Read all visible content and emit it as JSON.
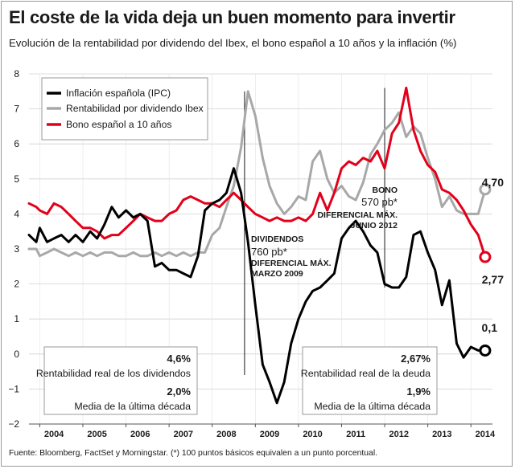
{
  "header": {
    "title": "El coste de la vida deja un buen momento para invertir",
    "subtitle": "Evolución de la rentabilidad por dividendo del Ibex, el bono español a 10 años y la inflación (%)"
  },
  "footer": {
    "source": "Fuente: Bloomberg, FactSet y Morningstar. (*) 100 puntos básicos equivalen a un punto porcentual."
  },
  "chart_data": {
    "type": "line",
    "title": "El coste de la vida deja un buen momento para invertir",
    "subtitle": "Evolución de la rentabilidad por dividendo del Ibex, el bono español a 10 años y la inflación (%)",
    "xlabel": "",
    "ylabel": "",
    "xlim": [
      2003.75,
      2014.5
    ],
    "ylim": [
      -2,
      8
    ],
    "y_ticks": [
      -2,
      -1,
      0,
      1,
      2,
      3,
      4,
      5,
      6,
      7,
      8
    ],
    "x_tick_labels": [
      "2004",
      "2005",
      "2006",
      "2007",
      "2008",
      "2009",
      "2010",
      "2011",
      "2012",
      "2013",
      "2014"
    ],
    "grid": true,
    "legend_position": "top-left",
    "series": [
      {
        "name": "Inflación española (IPC)",
        "color": "#000000",
        "x": [
          2003.75,
          2003.92,
          2004.0,
          2004.17,
          2004.33,
          2004.5,
          2004.67,
          2004.83,
          2005.0,
          2005.17,
          2005.33,
          2005.5,
          2005.67,
          2005.83,
          2006.0,
          2006.17,
          2006.33,
          2006.5,
          2006.67,
          2006.83,
          2007.0,
          2007.17,
          2007.33,
          2007.5,
          2007.67,
          2007.83,
          2008.0,
          2008.17,
          2008.33,
          2008.5,
          2008.67,
          2008.83,
          2009.0,
          2009.17,
          2009.33,
          2009.5,
          2009.67,
          2009.83,
          2010.0,
          2010.17,
          2010.33,
          2010.5,
          2010.67,
          2010.83,
          2011.0,
          2011.17,
          2011.33,
          2011.5,
          2011.67,
          2011.83,
          2012.0,
          2012.17,
          2012.33,
          2012.5,
          2012.67,
          2012.83,
          2013.0,
          2013.17,
          2013.33,
          2013.5,
          2013.67,
          2013.83,
          2014.0,
          2014.17,
          2014.33
        ],
        "values": [
          3.4,
          3.2,
          3.6,
          3.2,
          3.3,
          3.4,
          3.2,
          3.4,
          3.2,
          3.5,
          3.3,
          3.7,
          4.2,
          3.9,
          4.1,
          3.9,
          4.0,
          3.8,
          2.5,
          2.6,
          2.4,
          2.4,
          2.3,
          2.2,
          2.8,
          4.1,
          4.3,
          4.4,
          4.6,
          5.3,
          4.6,
          3.2,
          1.4,
          -0.3,
          -0.8,
          -1.4,
          -0.8,
          0.3,
          1.0,
          1.5,
          1.8,
          1.9,
          2.1,
          2.3,
          3.3,
          3.6,
          3.8,
          3.5,
          3.1,
          2.9,
          2.0,
          1.9,
          1.9,
          2.2,
          3.4,
          3.5,
          2.9,
          2.4,
          1.4,
          2.1,
          0.3,
          -0.1,
          0.2,
          0.1,
          0.1
        ]
      },
      {
        "name": "Rentabilidad por dividendo Ibex",
        "color": "#a8a8a8",
        "x": [
          2003.75,
          2003.92,
          2004.0,
          2004.17,
          2004.33,
          2004.5,
          2004.67,
          2004.83,
          2005.0,
          2005.17,
          2005.33,
          2005.5,
          2005.67,
          2005.83,
          2006.0,
          2006.17,
          2006.33,
          2006.5,
          2006.67,
          2006.83,
          2007.0,
          2007.17,
          2007.33,
          2007.5,
          2007.67,
          2007.83,
          2008.0,
          2008.17,
          2008.33,
          2008.5,
          2008.67,
          2008.83,
          2009.0,
          2009.17,
          2009.33,
          2009.5,
          2009.67,
          2009.83,
          2010.0,
          2010.17,
          2010.33,
          2010.5,
          2010.67,
          2010.83,
          2011.0,
          2011.17,
          2011.33,
          2011.5,
          2011.67,
          2011.83,
          2012.0,
          2012.17,
          2012.33,
          2012.5,
          2012.67,
          2012.83,
          2013.0,
          2013.17,
          2013.33,
          2013.5,
          2013.67,
          2013.83,
          2014.0,
          2014.17,
          2014.33
        ],
        "values": [
          3.0,
          3.0,
          2.8,
          2.9,
          3.0,
          2.9,
          2.8,
          2.9,
          2.8,
          2.9,
          2.8,
          2.9,
          2.9,
          2.8,
          2.8,
          2.9,
          2.8,
          2.8,
          2.9,
          2.8,
          2.9,
          2.8,
          2.9,
          2.8,
          2.9,
          2.9,
          3.4,
          3.6,
          4.2,
          4.8,
          5.9,
          7.5,
          6.8,
          5.6,
          4.8,
          4.3,
          4.0,
          4.2,
          4.5,
          4.4,
          5.5,
          5.8,
          5.0,
          4.6,
          4.8,
          4.5,
          4.4,
          4.9,
          5.7,
          6.0,
          6.4,
          6.6,
          6.9,
          6.2,
          6.5,
          6.3,
          5.6,
          5.0,
          4.2,
          4.5,
          4.1,
          4.0,
          4.0,
          4.0,
          4.7
        ]
      },
      {
        "name": "Bono español a 10 años",
        "color": "#e2001a",
        "x": [
          2003.75,
          2003.92,
          2004.0,
          2004.17,
          2004.33,
          2004.5,
          2004.67,
          2004.83,
          2005.0,
          2005.17,
          2005.33,
          2005.5,
          2005.67,
          2005.83,
          2006.0,
          2006.17,
          2006.33,
          2006.5,
          2006.67,
          2006.83,
          2007.0,
          2007.17,
          2007.33,
          2007.5,
          2007.67,
          2007.83,
          2008.0,
          2008.17,
          2008.33,
          2008.5,
          2008.67,
          2008.83,
          2009.0,
          2009.17,
          2009.33,
          2009.5,
          2009.67,
          2009.83,
          2010.0,
          2010.17,
          2010.33,
          2010.5,
          2010.67,
          2010.83,
          2011.0,
          2011.17,
          2011.33,
          2011.5,
          2011.67,
          2011.83,
          2012.0,
          2012.17,
          2012.33,
          2012.5,
          2012.67,
          2012.83,
          2013.0,
          2013.17,
          2013.33,
          2013.5,
          2013.67,
          2013.83,
          2014.0,
          2014.17,
          2014.33
        ],
        "values": [
          4.3,
          4.2,
          4.1,
          4.0,
          4.3,
          4.2,
          4.0,
          3.8,
          3.6,
          3.6,
          3.5,
          3.3,
          3.4,
          3.4,
          3.6,
          3.8,
          4.0,
          3.9,
          3.8,
          3.8,
          4.0,
          4.1,
          4.4,
          4.5,
          4.4,
          4.3,
          4.3,
          4.2,
          4.4,
          4.6,
          4.4,
          4.2,
          4.0,
          3.9,
          3.8,
          3.9,
          3.8,
          3.8,
          3.9,
          3.8,
          4.0,
          4.6,
          4.1,
          4.6,
          5.3,
          5.5,
          5.4,
          5.6,
          5.5,
          5.8,
          5.3,
          6.3,
          6.6,
          7.6,
          6.4,
          5.8,
          5.4,
          5.2,
          4.7,
          4.6,
          4.4,
          4.1,
          3.7,
          3.4,
          2.77
        ]
      }
    ],
    "end_labels": {
      "dividend": "4,70",
      "bond": "2,77",
      "inflation": "0,1"
    },
    "annotations": {
      "dividends": {
        "heading": "DIVIDENDOS",
        "value": "760 pb*",
        "note1": "DIFERENCIAL MÁX.",
        "note2": "MARZO 2009",
        "x": 2008.75
      },
      "bond": {
        "heading": "BONO",
        "value": "570 pb*",
        "note1": "DIFERENCIAL MÁX.",
        "note2": "JUNIO 2012",
        "x": 2012.0
      }
    },
    "info_boxes": [
      {
        "value1": "4,6%",
        "label1": "Rentabilidad real de los dividendos",
        "value2": "2,0%",
        "label2": "Media de la última década"
      },
      {
        "value1": "2,67%",
        "label1": "Rentabilidad real de la deuda",
        "value2": "1,9%",
        "label2": "Media de la última década"
      }
    ]
  }
}
